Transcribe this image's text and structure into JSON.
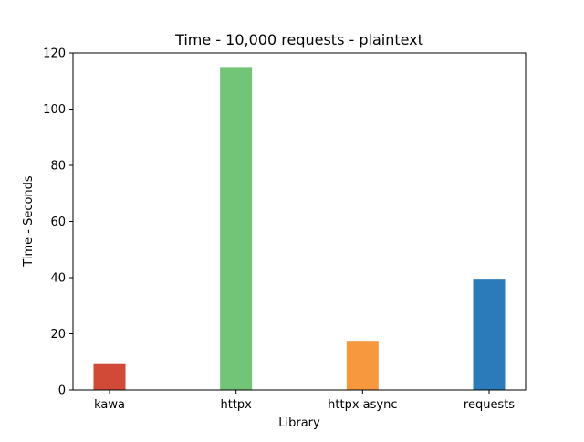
{
  "chart_data": {
    "type": "bar",
    "title": "Time - 10,000 requests - plaintext",
    "xlabel": "Library",
    "ylabel": "Time - Seconds",
    "categories": [
      "kawa",
      "httpx",
      "httpx async",
      "requests"
    ],
    "values": [
      9.2,
      115.0,
      17.5,
      39.3
    ],
    "colors": [
      "#d14a37",
      "#72c476",
      "#f7983e",
      "#2b7bba"
    ],
    "ylim": [
      0,
      120
    ],
    "yticks": [
      0,
      20,
      40,
      60,
      80,
      100,
      120
    ],
    "grid": false,
    "legend": "none"
  }
}
